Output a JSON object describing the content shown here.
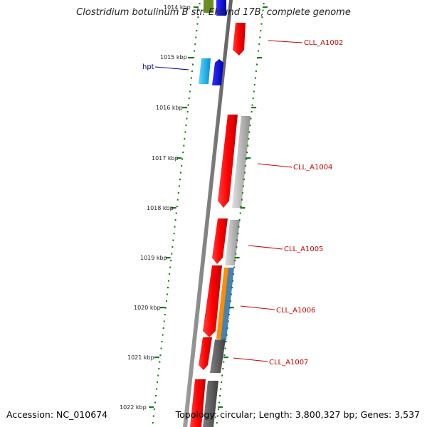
{
  "title": "Clostridium botulinum B str. Eklund 17B, complete genome",
  "footer": {
    "accession": "Accession: NC_010674",
    "summary": "Topology: circular; Length: 3,800,327 bp; Genes: 3,537"
  },
  "scale_labels": [
    "1014 kbp",
    "1015 kbp",
    "1016 kbp",
    "1017 kbp",
    "1018 kbp",
    "1019 kbp",
    "1020 kbp",
    "1021 kbp",
    "1022 kbp"
  ],
  "gene_labels": [
    {
      "text": "hpt",
      "color": "#00008b"
    },
    {
      "text": "CLL_A1002",
      "color": "#cc0000"
    },
    {
      "text": "CLL_A1004",
      "color": "#cc0000"
    },
    {
      "text": "CLL_A1005",
      "color": "#cc0000"
    },
    {
      "text": "CLL_A1006",
      "color": "#cc0000"
    },
    {
      "text": "CLL_A1007",
      "color": "#cc0000"
    }
  ],
  "colors": {
    "backbone": "#808080",
    "cds_forward": "#ff0000",
    "cds_reverse_a": "#0000ff",
    "cds_reverse_b": "#00bfff",
    "gc_skew": "#b0b0b0",
    "gc_dark": "#606060",
    "orange": "#ff8c00",
    "steelblue": "#4682b4",
    "olive": "#6b8e23",
    "tick_green": "#1a7a1a"
  }
}
